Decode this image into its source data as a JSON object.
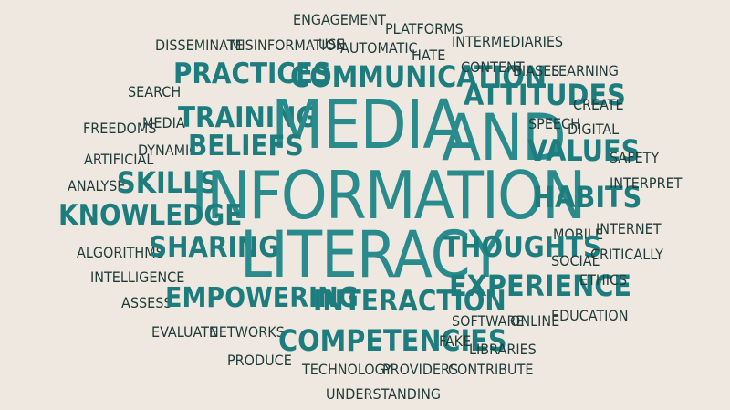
{
  "word_cloud": {
    "colors": {
      "background": "#efe8e0",
      "dark_text": "#1f3b3a",
      "accent_text": "#1d7d7e"
    },
    "words": {
      "engagement": "ENGAGEMENT",
      "platforms": "PLATFORMS",
      "disseminate": "DISSEMINATE",
      "misinformation": "MISINFORMATION",
      "use": "USE",
      "automatic": "AUTOMATIC",
      "hate": "HATE",
      "intermediaries": "INTERMEDIARIES",
      "practices": "PRACTICES",
      "communication": "COMMUNICATION",
      "content": "CONTENT",
      "biases": "BIASES",
      "learning": "LEARNING",
      "search": "SEARCH",
      "attitudes": "ATTITUDES",
      "create": "CREATE",
      "freedoms": "FREEDOMS",
      "media_small": "MEDIA",
      "training": "TRAINING",
      "media": "MEDIA",
      "and": "AND",
      "speech": "SPEECH",
      "digital": "DIGITAL",
      "artificial": "ARTIFICIAL",
      "dynamic": "DYNAMIC",
      "beliefs": "BELIEFS",
      "values": "VALUES",
      "safety": "SAFETY",
      "analyse": "ANALYSE",
      "skills": "SKILLS",
      "information": "INFORMATION",
      "habits": "HABITS",
      "interpret": "INTERPRET",
      "knowledge": "KNOWLEDGE",
      "mobile": "MOBILE",
      "internet": "INTERNET",
      "algorithms": "ALGORITHMS",
      "sharing": "SHARING",
      "literacy": "LITERACY",
      "thoughts": "THOUGHTS",
      "social": "SOCIAL",
      "critically": "CRITICALLY",
      "intelligence": "INTELLIGENCE",
      "experience": "EXPERIENCE",
      "ethics": "ETHICS",
      "assess": "ASSESS",
      "empowering": "EMPOWERING",
      "interaction": "INTERACTION",
      "software": "SOFTWARE",
      "online": "ONLINE",
      "education": "EDUCATION",
      "evaluate": "EVALUATE",
      "networks": "NETWORKS",
      "competencies": "COMPETENCIES",
      "fake": "FAKE",
      "libraries": "LIBRARIES",
      "produce": "PRODUCE",
      "technology": "TECHNOLOGY",
      "providers": "PROVIDERS",
      "contribute": "CONTRIBUTE",
      "understanding": "UNDERSTANDING"
    }
  }
}
